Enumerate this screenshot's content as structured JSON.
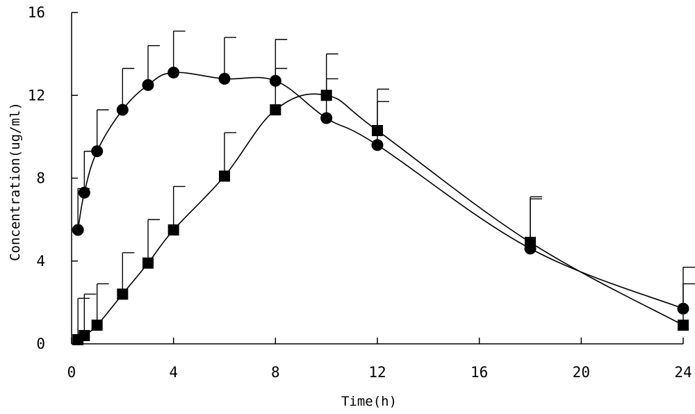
{
  "chart_data": {
    "type": "line",
    "xlabel": "Time(h)",
    "ylabel": "Concentration(ug/ml)",
    "xlim": [
      0,
      24
    ],
    "ylim": [
      0,
      16
    ],
    "x_ticks": [
      0,
      4,
      8,
      12,
      16,
      20,
      24
    ],
    "y_ticks": [
      0,
      4,
      8,
      12,
      16
    ],
    "grid": false,
    "legend": "none",
    "series": [
      {
        "marker": "circle",
        "x": [
          0.25,
          0.5,
          1,
          2,
          3,
          4,
          6,
          8,
          10,
          12,
          18,
          24
        ],
        "y": [
          5.5,
          7.3,
          9.3,
          11.3,
          12.5,
          13.1,
          12.8,
          12.7,
          10.9,
          9.6,
          4.6,
          1.7
        ],
        "error": [
          2.0,
          2.0,
          2.0,
          2.0,
          1.9,
          2.0,
          2.0,
          2.0,
          1.9,
          2.1,
          2.4,
          2.0
        ]
      },
      {
        "marker": "square",
        "x": [
          0.25,
          0.5,
          1,
          2,
          3,
          4,
          6,
          8,
          10,
          12,
          18,
          24
        ],
        "y": [
          0.2,
          0.4,
          0.9,
          2.4,
          3.9,
          5.5,
          8.1,
          11.3,
          12.0,
          10.3,
          4.9,
          0.9
        ],
        "error": [
          2.0,
          2.0,
          2.0,
          2.0,
          2.1,
          2.1,
          2.1,
          2.0,
          2.0,
          2.0,
          2.2,
          2.0
        ]
      }
    ]
  }
}
